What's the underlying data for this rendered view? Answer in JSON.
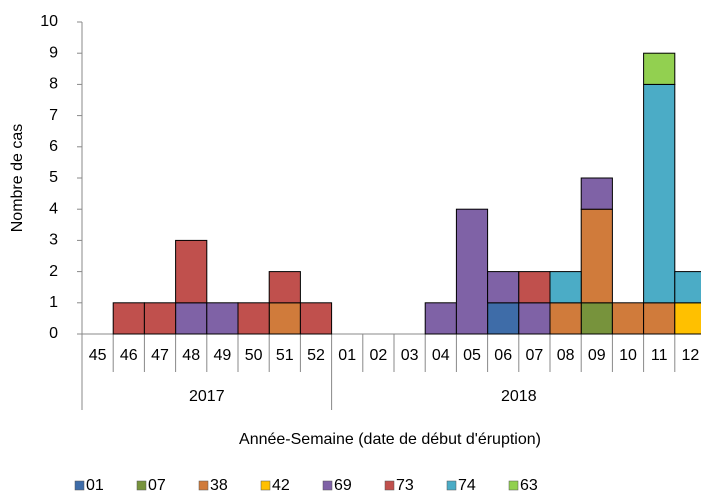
{
  "chart_data": {
    "type": "stacked_bar",
    "y_label": "Nombre de cas",
    "x_label": "Année-Semaine (date de début d'éruption)",
    "category_groups": [
      {
        "name": "2017",
        "categories": [
          "45",
          "46",
          "47",
          "48",
          "49",
          "50",
          "51",
          "52"
        ]
      },
      {
        "name": "2018",
        "categories": [
          "01",
          "02",
          "03",
          "04",
          "05",
          "06",
          "07",
          "08",
          "09",
          "10",
          "11",
          "12"
        ]
      }
    ],
    "series": [
      {
        "name": "01",
        "color": "#3e6ca8",
        "values": [
          0,
          0,
          0,
          0,
          0,
          0,
          0,
          0,
          0,
          0,
          0,
          0,
          0,
          1,
          0,
          0,
          0,
          0,
          0,
          0
        ]
      },
      {
        "name": "07",
        "color": "#77933c",
        "values": [
          0,
          0,
          0,
          0,
          0,
          0,
          0,
          0,
          0,
          0,
          0,
          0,
          0,
          0,
          0,
          0,
          1,
          0,
          0,
          0
        ]
      },
      {
        "name": "38",
        "color": "#d07b3b",
        "values": [
          0,
          0,
          0,
          0,
          0,
          0,
          1,
          0,
          0,
          0,
          0,
          0,
          0,
          0,
          0,
          1,
          3,
          1,
          1,
          0
        ]
      },
      {
        "name": "42",
        "color": "#ffc000",
        "values": [
          0,
          0,
          0,
          0,
          0,
          0,
          0,
          0,
          0,
          0,
          0,
          0,
          0,
          0,
          0,
          0,
          0,
          0,
          0,
          1
        ]
      },
      {
        "name": "69",
        "color": "#7f62a6",
        "values": [
          0,
          0,
          0,
          1,
          1,
          0,
          0,
          0,
          0,
          0,
          0,
          1,
          4,
          1,
          1,
          0,
          1,
          0,
          0,
          0
        ]
      },
      {
        "name": "73",
        "color": "#c0504d",
        "values": [
          0,
          1,
          1,
          2,
          0,
          1,
          1,
          1,
          0,
          0,
          0,
          0,
          0,
          0,
          1,
          0,
          0,
          0,
          0,
          0
        ]
      },
      {
        "name": "74",
        "color": "#4bacc6",
        "values": [
          0,
          0,
          0,
          0,
          0,
          0,
          0,
          0,
          0,
          0,
          0,
          0,
          0,
          0,
          0,
          1,
          0,
          0,
          7,
          1
        ]
      },
      {
        "name": "63",
        "color": "#92d050",
        "values": [
          0,
          0,
          0,
          0,
          0,
          0,
          0,
          0,
          0,
          0,
          0,
          0,
          0,
          0,
          0,
          0,
          0,
          0,
          1,
          0
        ]
      }
    ],
    "ylim": [
      0,
      10
    ],
    "yticks": [
      0,
      1,
      2,
      3,
      4,
      5,
      6,
      7,
      8,
      9,
      10
    ]
  }
}
